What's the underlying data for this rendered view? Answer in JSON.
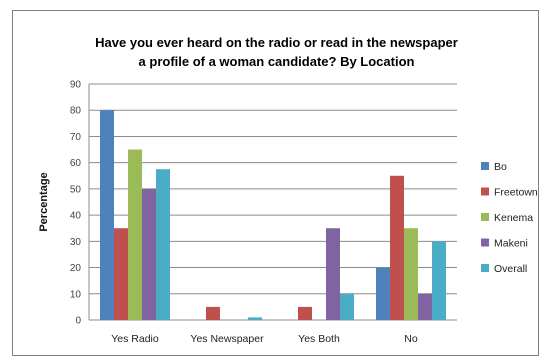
{
  "chart_data": {
    "type": "bar",
    "title_line1": "Have you ever heard on the radio or read in the newspaper",
    "title_line2": "a profile of a woman candidate? By Location",
    "xlabel": "",
    "ylabel": "Percentage",
    "ylim": [
      0,
      90
    ],
    "yticks": [
      0,
      10,
      20,
      30,
      40,
      50,
      60,
      70,
      80,
      90
    ],
    "grid": true,
    "legend_position": "right",
    "categories": [
      "Yes Radio",
      "Yes Newspaper",
      "Yes Both",
      "No"
    ],
    "series": [
      {
        "name": "Bo",
        "color": "#4f81bd",
        "values": [
          80,
          0,
          0,
          20
        ]
      },
      {
        "name": "Freetown",
        "color": "#c0504d",
        "values": [
          35,
          5,
          5,
          55
        ]
      },
      {
        "name": "Kenema",
        "color": "#9bbb59",
        "values": [
          65,
          0,
          0,
          35
        ]
      },
      {
        "name": "Makeni",
        "color": "#8064a2",
        "values": [
          50,
          0,
          35,
          10
        ]
      },
      {
        "name": "Overall",
        "color": "#4bacc6",
        "values": [
          57.5,
          1,
          10,
          30
        ]
      }
    ]
  }
}
